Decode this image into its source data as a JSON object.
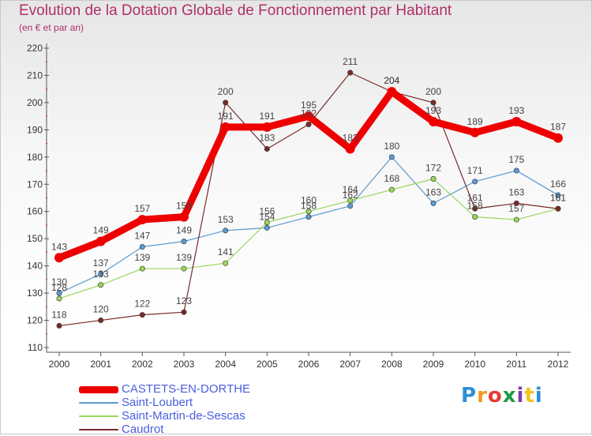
{
  "header": {
    "title": "Evolution de la Dotation Globale de Fonctionnement par Habitant",
    "subtitle": "(en € et par an)"
  },
  "brand": {
    "text": "Proxiti",
    "icon": "proxiti-logo"
  },
  "chart_data": {
    "type": "line",
    "x": [
      2000,
      2001,
      2002,
      2003,
      2004,
      2005,
      2006,
      2007,
      2008,
      2009,
      2010,
      2011,
      2012
    ],
    "ylim": [
      110,
      220
    ],
    "yticks": [
      110,
      120,
      130,
      140,
      150,
      160,
      170,
      180,
      190,
      200,
      210,
      220
    ],
    "grid": false,
    "legend_position": "bottom-left",
    "series": [
      {
        "name": "CASTETS-EN-DORTHE",
        "color": "#ee0000",
        "emphasis": true,
        "values": [
          143,
          149,
          157,
          158,
          191,
          191,
          195,
          183,
          204,
          193,
          189,
          193,
          187
        ]
      },
      {
        "name": "Saint-Loubert",
        "color": "#5b9bd0",
        "emphasis": false,
        "values": [
          130,
          137,
          147,
          149,
          153,
          154,
          158,
          162,
          180,
          163,
          171,
          175,
          166
        ]
      },
      {
        "name": "Saint-Martin-de-Sescas",
        "color": "#99d65b",
        "emphasis": false,
        "values": [
          128,
          133,
          139,
          139,
          141,
          156,
          160,
          164,
          168,
          172,
          158,
          157,
          161
        ]
      },
      {
        "name": "Caudrot",
        "color": "#7a2a2a",
        "emphasis": false,
        "values": [
          118,
          120,
          122,
          123,
          200,
          183,
          192,
          211,
          204,
          200,
          161,
          163,
          161
        ]
      }
    ]
  }
}
